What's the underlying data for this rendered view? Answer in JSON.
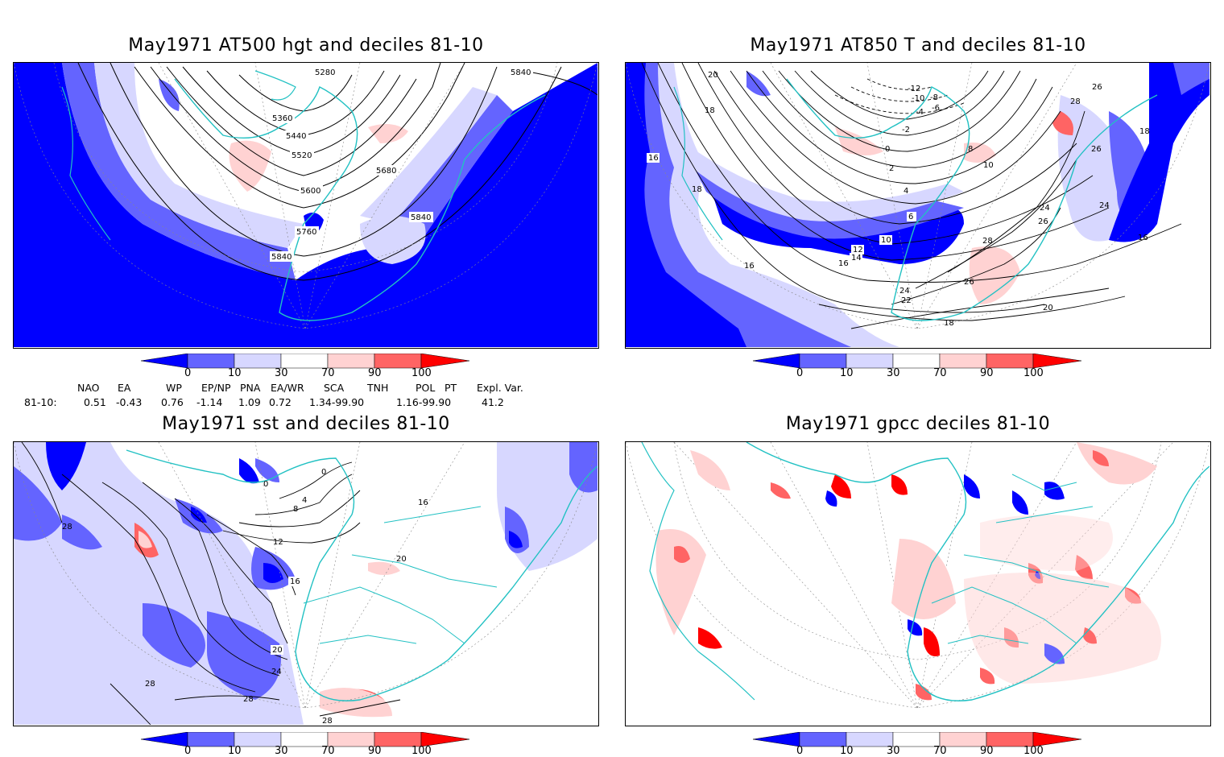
{
  "panels": [
    {
      "id": "z500",
      "title": "May1971 AT500 hgt and deciles 81-10",
      "contour_labels": [
        "5280",
        "5360",
        "5440",
        "5520",
        "5600",
        "5680",
        "5760",
        "5840",
        "5840",
        "5840"
      ]
    },
    {
      "id": "t850",
      "title": "May1971 AT850 T and deciles 81-10",
      "contour_labels": [
        "20",
        "18",
        "16",
        "18",
        "-12",
        "-10",
        "-8",
        "-6",
        "-4",
        "-2",
        "0",
        "2",
        "4",
        "6",
        "8",
        "10",
        "10",
        "12",
        "14",
        "16",
        "16",
        "18",
        "20",
        "22",
        "24",
        "24",
        "24",
        "26",
        "26",
        "26",
        "26",
        "28",
        "28",
        "18",
        "16"
      ]
    },
    {
      "id": "sst",
      "title": "May1971 sst and deciles 81-10",
      "contour_labels": [
        "28",
        "0",
        "0",
        "4",
        "8",
        "12",
        "16",
        "16",
        "20",
        "20",
        "24",
        "28",
        "28",
        "28"
      ]
    },
    {
      "id": "gpcc",
      "title": "May1971 gpcc deciles 81-10",
      "contour_labels": []
    }
  ],
  "colorbar": {
    "ticks": [
      "0",
      "10",
      "30",
      "70",
      "90",
      "100"
    ],
    "colors": [
      "#0000ff",
      "#6464ff",
      "#d7d7ff",
      "#ffffff",
      "#ffd2d2",
      "#ff6464",
      "#ff0000"
    ]
  },
  "indices": {
    "headers": [
      "NAO",
      "EA",
      "WP",
      "EP/NP",
      "PNA",
      "EA/WR",
      "SCA",
      "TNH",
      "POL",
      "PT",
      "Expl. Var."
    ],
    "row_label": "81-10:",
    "values": [
      "0.51",
      "-0.43",
      "0.76",
      "-1.14",
      "1.09",
      "0.72",
      "1.34-99.90",
      "1.16-99.90",
      "41.2"
    ]
  },
  "colors": {
    "coast": "#22c1c3",
    "deep_blue": "#0000ff",
    "mid_blue": "#6464ff",
    "light_blue": "#d7d7ff",
    "light_red": "#ffd2d2",
    "mid_red": "#ff6464",
    "deep_red": "#ff0000"
  }
}
